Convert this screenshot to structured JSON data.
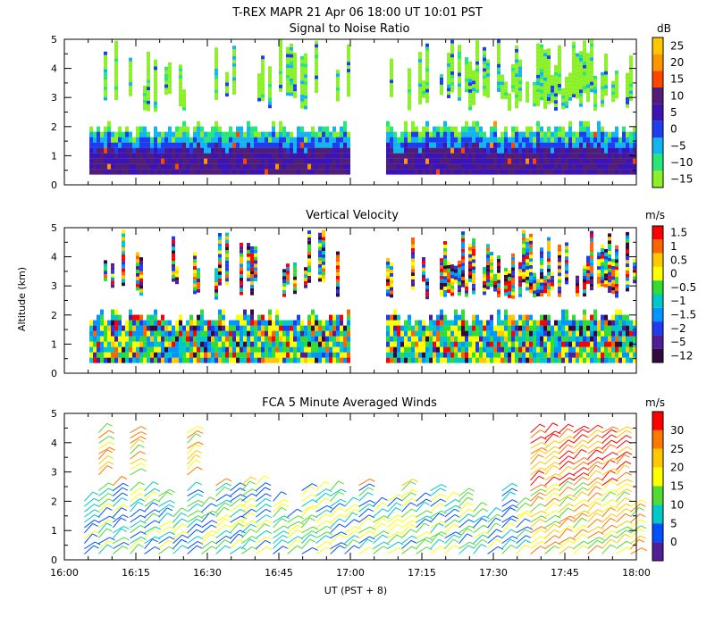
{
  "figure_title": "T-REX   MAPR 21 Apr 06   18:00 UT   10:01   PST",
  "xlabel": "UT  (PST + 8)",
  "ylabel": "Altitude (km)",
  "x_ticks": [
    "16:00",
    "16:15",
    "16:30",
    "16:45",
    "17:00",
    "17:15",
    "17:30",
    "17:45",
    "18:00"
  ],
  "chart_data": [
    {
      "type": "heatmap",
      "title": "Signal to Noise Ratio",
      "unit": "dB",
      "ylim": [
        0,
        5
      ],
      "yticks": [
        "0",
        "1",
        "2",
        "3",
        "4",
        "5"
      ],
      "colorbar_labels": [
        "25",
        "20",
        "15",
        "10",
        "5",
        "0",
        "−5",
        "−10",
        "−15"
      ],
      "colors": [
        "#ffc800",
        "#ff9600",
        "#ff4600",
        "#501e78",
        "#3c14b4",
        "#1e3cf0",
        "#14b4f0",
        "#28e678",
        "#8cf028"
      ],
      "data_gap": [
        17.0,
        17.125
      ]
    },
    {
      "type": "heatmap",
      "title": "Vertical Velocity",
      "unit": "m/s",
      "ylim": [
        0,
        5
      ],
      "yticks": [
        "0",
        "1",
        "2",
        "3",
        "4",
        "5"
      ],
      "colorbar_labels": [
        "1.5",
        "1",
        "0.5",
        "0",
        "−0.5",
        "−1",
        "−1.5",
        "−2",
        "−5",
        "−12"
      ],
      "colors": [
        "#ff0000",
        "#ff6400",
        "#ffc800",
        "#ffff00",
        "#32dc32",
        "#00c8c8",
        "#0096ff",
        "#1e3cf0",
        "#501e96",
        "#320a3c"
      ],
      "data_gap": [
        17.0,
        17.125
      ]
    },
    {
      "type": "scatter",
      "title": "FCA 5 Minute Averaged Winds",
      "unit": "m/s",
      "ylim": [
        0,
        5
      ],
      "yticks": [
        "0",
        "1",
        "2",
        "3",
        "4",
        "5"
      ],
      "colorbar_labels": [
        "30",
        "25",
        "20",
        "15",
        "10",
        "5",
        "0"
      ],
      "colors": [
        "#ff0000",
        "#ff7800",
        "#ffc800",
        "#ffff00",
        "#50dc32",
        "#00c8c8",
        "#0050ff",
        "#501e96"
      ],
      "xlim": [
        16.0,
        18.0
      ]
    }
  ]
}
